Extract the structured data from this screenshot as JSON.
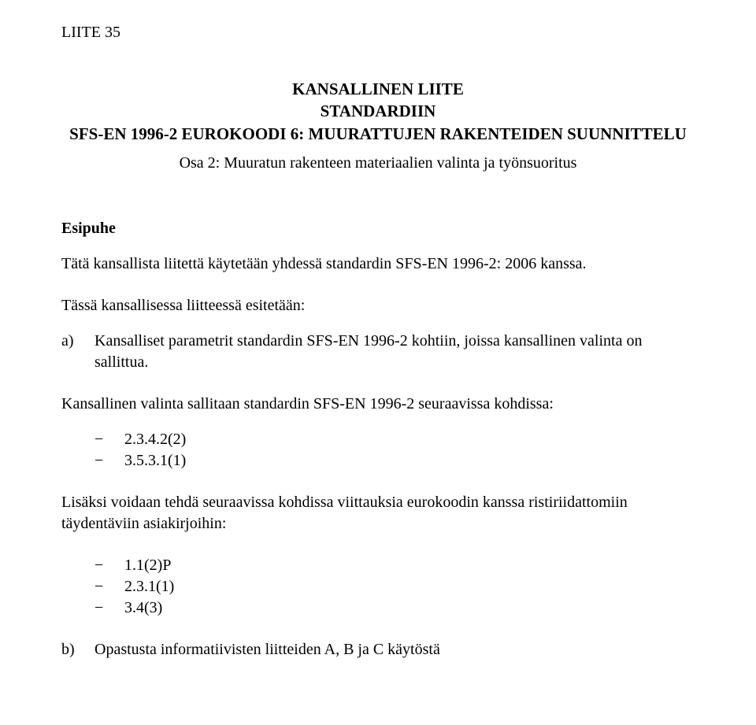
{
  "doc_id": "LIITE 35",
  "title": {
    "line1": "KANSALLINEN LIITE",
    "line2": "STANDARDIIN",
    "line3": "SFS-EN 1996-2 EUROKOODI 6: MUURATTUJEN RAKENTEIDEN SUUNNITTELU",
    "subtitle": "Osa 2: Muuratun rakenteen materiaalien valinta ja työnsuoritus"
  },
  "preface_heading": "Esipuhe",
  "para1": "Tätä kansallista liitettä käytetään yhdessä standardin SFS-EN 1996-2: 2006 kanssa.",
  "para2": "Tässä kansallisessa liitteessä esitetään:",
  "item_a": {
    "marker": "a)",
    "text": "Kansalliset parametrit standardin SFS-EN 1996-2 kohtiin, joissa kansallinen valinta on sallittua."
  },
  "para3": "Kansallinen valinta sallitaan standardin SFS-EN 1996-2 seuraavissa kohdissa:",
  "dash_list1": [
    "2.3.4.2(2)",
    "3.5.3.1(1)"
  ],
  "para4": "Lisäksi voidaan tehdä seuraavissa kohdissa viittauksia eurokoodin kanssa ristiriidattomiin täydentäviin asiakirjoihin:",
  "dash_list2": [
    "1.1(2)P",
    "2.3.1(1)",
    "3.4(3)"
  ],
  "item_b": {
    "marker": "b)",
    "text": "Opastusta informatiivisten liitteiden A, B ja C käytöstä"
  },
  "dash_glyph": "−",
  "colors": {
    "text": "#000000",
    "background": "#ffffff"
  }
}
